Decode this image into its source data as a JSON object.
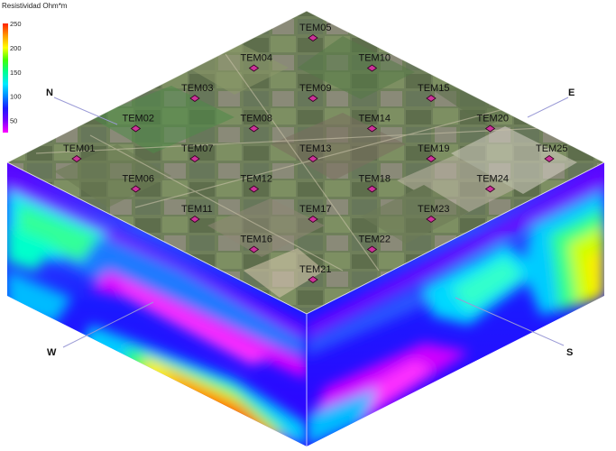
{
  "colorbar": {
    "title": "Resistividad Ohm*m",
    "ticks": [
      "250",
      "200",
      "150",
      "100",
      "50"
    ],
    "tick_values": [
      250,
      200,
      150,
      100,
      50
    ],
    "min": 25,
    "max": 250,
    "colors": [
      "#ff00ff",
      "#7700ff",
      "#1a1aff",
      "#0088ff",
      "#00eaff",
      "#00ff90",
      "#44ff00",
      "#ffff00",
      "#ff9900",
      "#ff2200"
    ]
  },
  "directions": {
    "north": "N",
    "east": "E",
    "west": "W",
    "south": "S"
  },
  "stations": [
    {
      "id": "TEM01",
      "row": 4,
      "col": 0
    },
    {
      "id": "TEM02",
      "row": 3,
      "col": 0
    },
    {
      "id": "TEM03",
      "row": 2,
      "col": 0
    },
    {
      "id": "TEM04",
      "row": 1,
      "col": 0
    },
    {
      "id": "TEM05",
      "row": 0,
      "col": 0
    },
    {
      "id": "TEM06",
      "row": 4,
      "col": 1
    },
    {
      "id": "TEM07",
      "row": 3,
      "col": 1
    },
    {
      "id": "TEM08",
      "row": 2,
      "col": 1
    },
    {
      "id": "TEM09",
      "row": 1,
      "col": 1
    },
    {
      "id": "TEM10",
      "row": 0,
      "col": 1
    },
    {
      "id": "TEM11",
      "row": 4,
      "col": 2
    },
    {
      "id": "TEM12",
      "row": 3,
      "col": 2
    },
    {
      "id": "TEM13",
      "row": 2,
      "col": 2
    },
    {
      "id": "TEM14",
      "row": 1,
      "col": 2
    },
    {
      "id": "TEM15",
      "row": 0,
      "col": 2
    },
    {
      "id": "TEM16",
      "row": 4,
      "col": 3
    },
    {
      "id": "TEM17",
      "row": 3,
      "col": 3
    },
    {
      "id": "TEM18",
      "row": 2,
      "col": 3
    },
    {
      "id": "TEM19",
      "row": 1,
      "col": 3
    },
    {
      "id": "TEM20",
      "row": 0,
      "col": 3
    },
    {
      "id": "TEM21",
      "row": 4,
      "col": 4
    },
    {
      "id": "TEM22",
      "row": 3,
      "col": 4
    },
    {
      "id": "TEM23",
      "row": 2,
      "col": 4
    },
    {
      "id": "TEM24",
      "row": 1,
      "col": 4
    },
    {
      "id": "TEM25",
      "row": 0,
      "col": 4
    }
  ],
  "colors": {
    "marker": "#cc3399",
    "marker_stroke": "#330022",
    "axis_line": "#9a9ad6"
  }
}
